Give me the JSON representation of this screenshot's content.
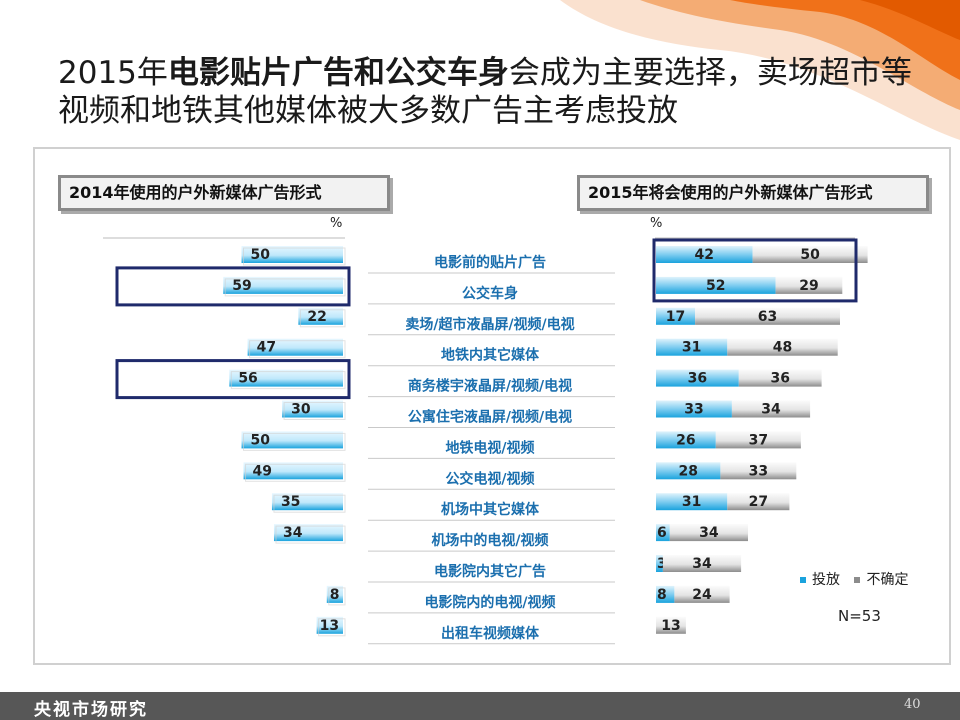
{
  "title": {
    "part1": "2015年",
    "bold1": "电影贴片广告和公交车身",
    "part2": "会成为主要选择，卖场超市等视频和地铁其他媒体被大多数广告主考虑投放"
  },
  "left_header": "2014年使用的户外新媒体广告形式",
  "right_header": "2015年将会使用的户外新媒体广告形式",
  "percent_symbol": "%",
  "legend": {
    "invest": "投放",
    "uncertain": "不确定"
  },
  "sample_size": "N=53",
  "footer": {
    "org": "央视市场研究",
    "page": "40"
  },
  "colors": {
    "blue": "#1aa3dd",
    "gray": "#8c8c8c",
    "frame": "#1f2a6b"
  },
  "chart_data": [
    {
      "type": "bar",
      "title": "2014年使用的户外新媒体广告形式",
      "unit": "%",
      "categories": [
        "电影前的贴片广告",
        "公交车身",
        "卖场/超市液晶屏/视频/电视",
        "地铁内其它媒体",
        "商务楼宇液晶屏/视频/电视",
        "公寓住宅液晶屏/视频/电视",
        "地铁电视/视频",
        "公交电视/视频",
        "机场中其它媒体",
        "机场中的电视/视频",
        "电影院内其它广告",
        "电影院内的电视/视频",
        "出租车视频媒体"
      ],
      "series": [
        {
          "values": [
            50,
            59,
            22,
            47,
            56,
            30,
            50,
            49,
            35,
            34,
            null,
            8,
            13
          ]
        }
      ],
      "highlighted": [
        "公交车身",
        "商务楼宇液晶屏/视频/电视"
      ]
    },
    {
      "type": "bar",
      "title": "2015年将会使用的户外新媒体广告形式",
      "unit": "%",
      "stacked": true,
      "categories": [
        "电影前的贴片广告",
        "公交车身",
        "卖场/超市液晶屏/视频/电视",
        "地铁内其它媒体",
        "商务楼宇液晶屏/视频/电视",
        "公寓住宅液晶屏/视频/电视",
        "地铁电视/视频",
        "公交电视/视频",
        "机场中其它媒体",
        "机场中的电视/视频",
        "电影院内其它广告",
        "电影院内的电视/视频",
        "出租车视频媒体"
      ],
      "series": [
        {
          "name": "投放",
          "values": [
            42,
            52,
            17,
            31,
            36,
            33,
            26,
            28,
            31,
            6,
            3,
            8,
            null
          ]
        },
        {
          "name": "不确定",
          "values": [
            50,
            29,
            63,
            48,
            36,
            34,
            37,
            33,
            27,
            34,
            34,
            24,
            13
          ]
        }
      ],
      "legend": "right",
      "highlighted": [
        "电影前的贴片广告",
        "公交车身"
      ]
    }
  ]
}
